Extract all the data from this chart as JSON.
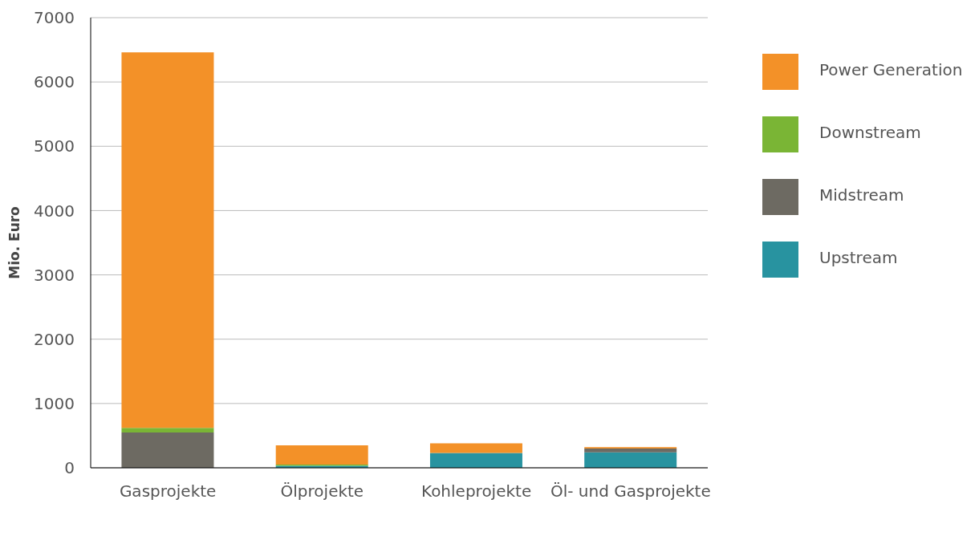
{
  "chart_data": {
    "type": "bar",
    "ylabel": "Mio. Euro",
    "stacked": true,
    "categories": [
      "Gasprojekte",
      "Ölprojekte",
      "Kohleprojekte",
      "Öl- und Gasprojekte"
    ],
    "series": [
      {
        "name": "Upstream",
        "color": "#2893a0",
        "values": [
          0,
          30,
          230,
          240
        ]
      },
      {
        "name": "Midstream",
        "color": "#6d6a62",
        "values": [
          550,
          0,
          0,
          60
        ]
      },
      {
        "name": "Downstream",
        "color": "#7ab535",
        "values": [
          70,
          20,
          0,
          0
        ]
      },
      {
        "name": "Power Generation",
        "color": "#f39128",
        "values": [
          5840,
          300,
          150,
          20
        ]
      }
    ],
    "ylim": [
      0,
      7000
    ],
    "yticks": [
      0,
      1000,
      2000,
      3000,
      4000,
      5000,
      6000,
      7000
    ],
    "grid": "y",
    "legend": "right"
  }
}
